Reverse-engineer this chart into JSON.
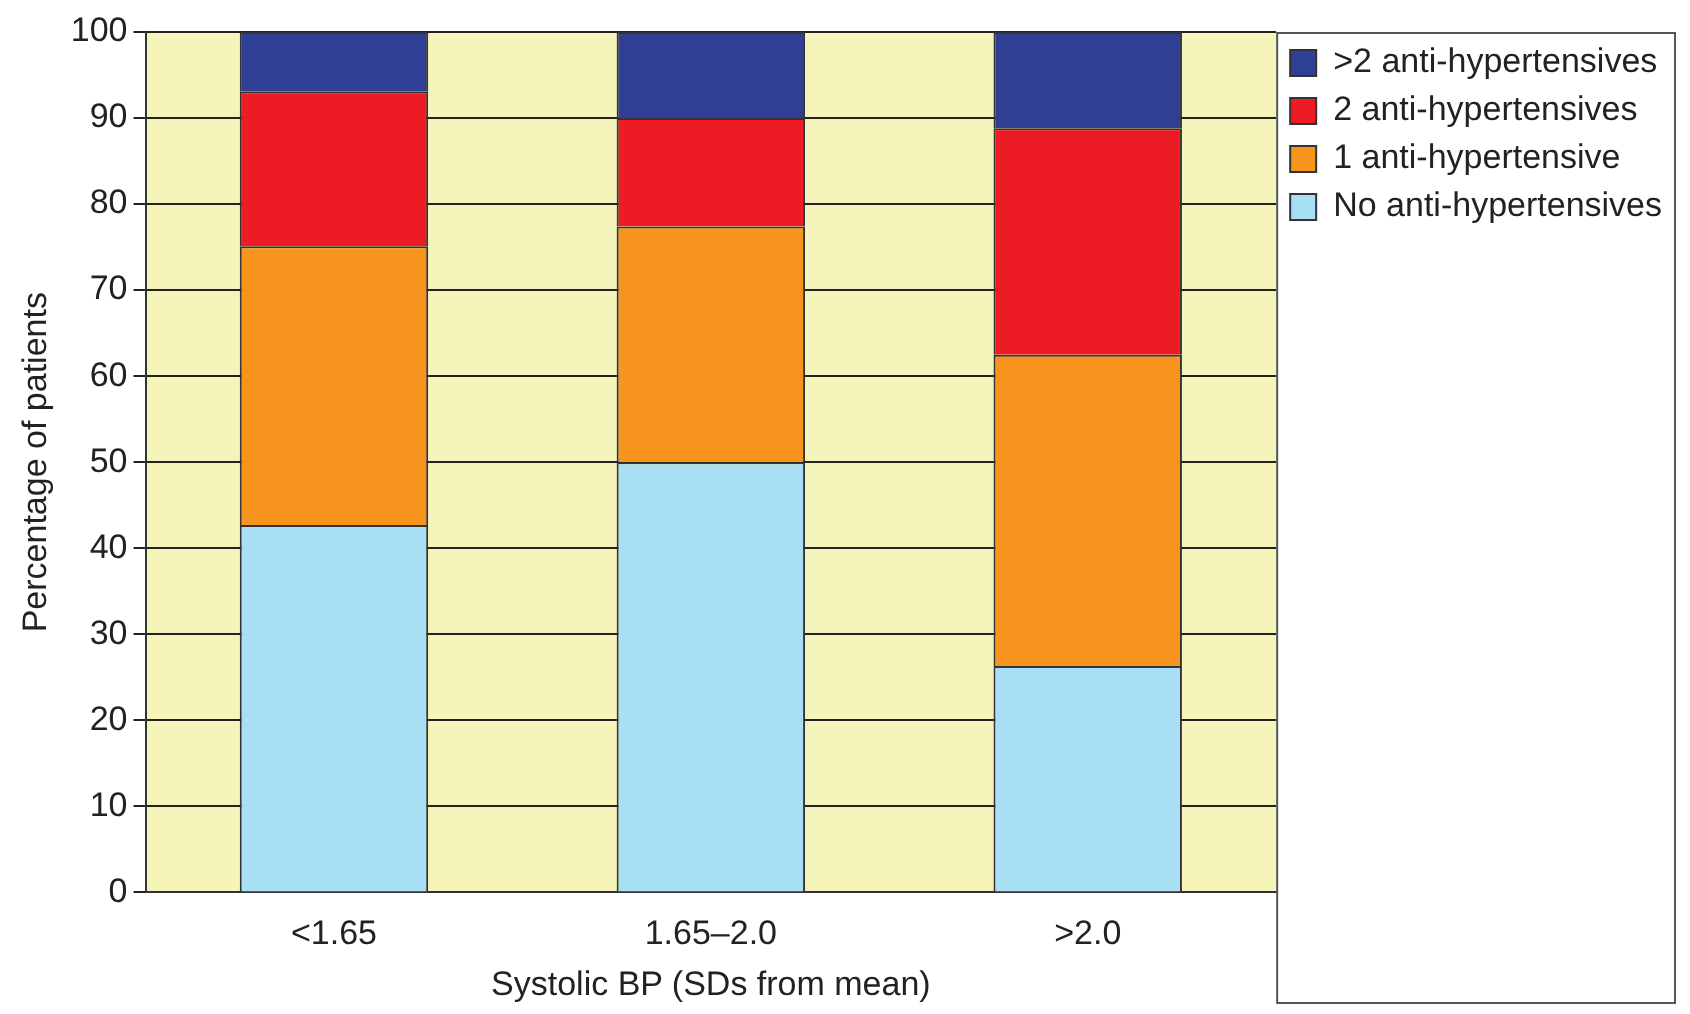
{
  "chart_data": {
    "type": "bar",
    "stacked": true,
    "xlabel": "Systolic BP (SDs from mean)",
    "ylabel": "Percentage of patients",
    "categories": [
      "<1.65",
      "1.65–2.0",
      ">2.0"
    ],
    "series": [
      {
        "name": "No anti-hypertensives",
        "color": "#a8dff5",
        "values": [
          42.7,
          50,
          26.3
        ]
      },
      {
        "name": "1 anti-hypertensive",
        "color": "#f7941d",
        "values": [
          32.4,
          27.4,
          36.2
        ]
      },
      {
        "name": "2 anti-hypertensives",
        "color": "#ed1c24",
        "values": [
          18,
          12.6,
          26.3
        ]
      },
      {
        "name": ">2 anti-hypertensives",
        "color": "#2e3f94",
        "values": [
          6.9,
          10,
          11.2
        ]
      }
    ],
    "ylim": [
      0,
      100
    ],
    "yticks": [
      0,
      10,
      20,
      30,
      40,
      50,
      60,
      70,
      80,
      90,
      100
    ],
    "grid": "y",
    "legend": "top right"
  }
}
